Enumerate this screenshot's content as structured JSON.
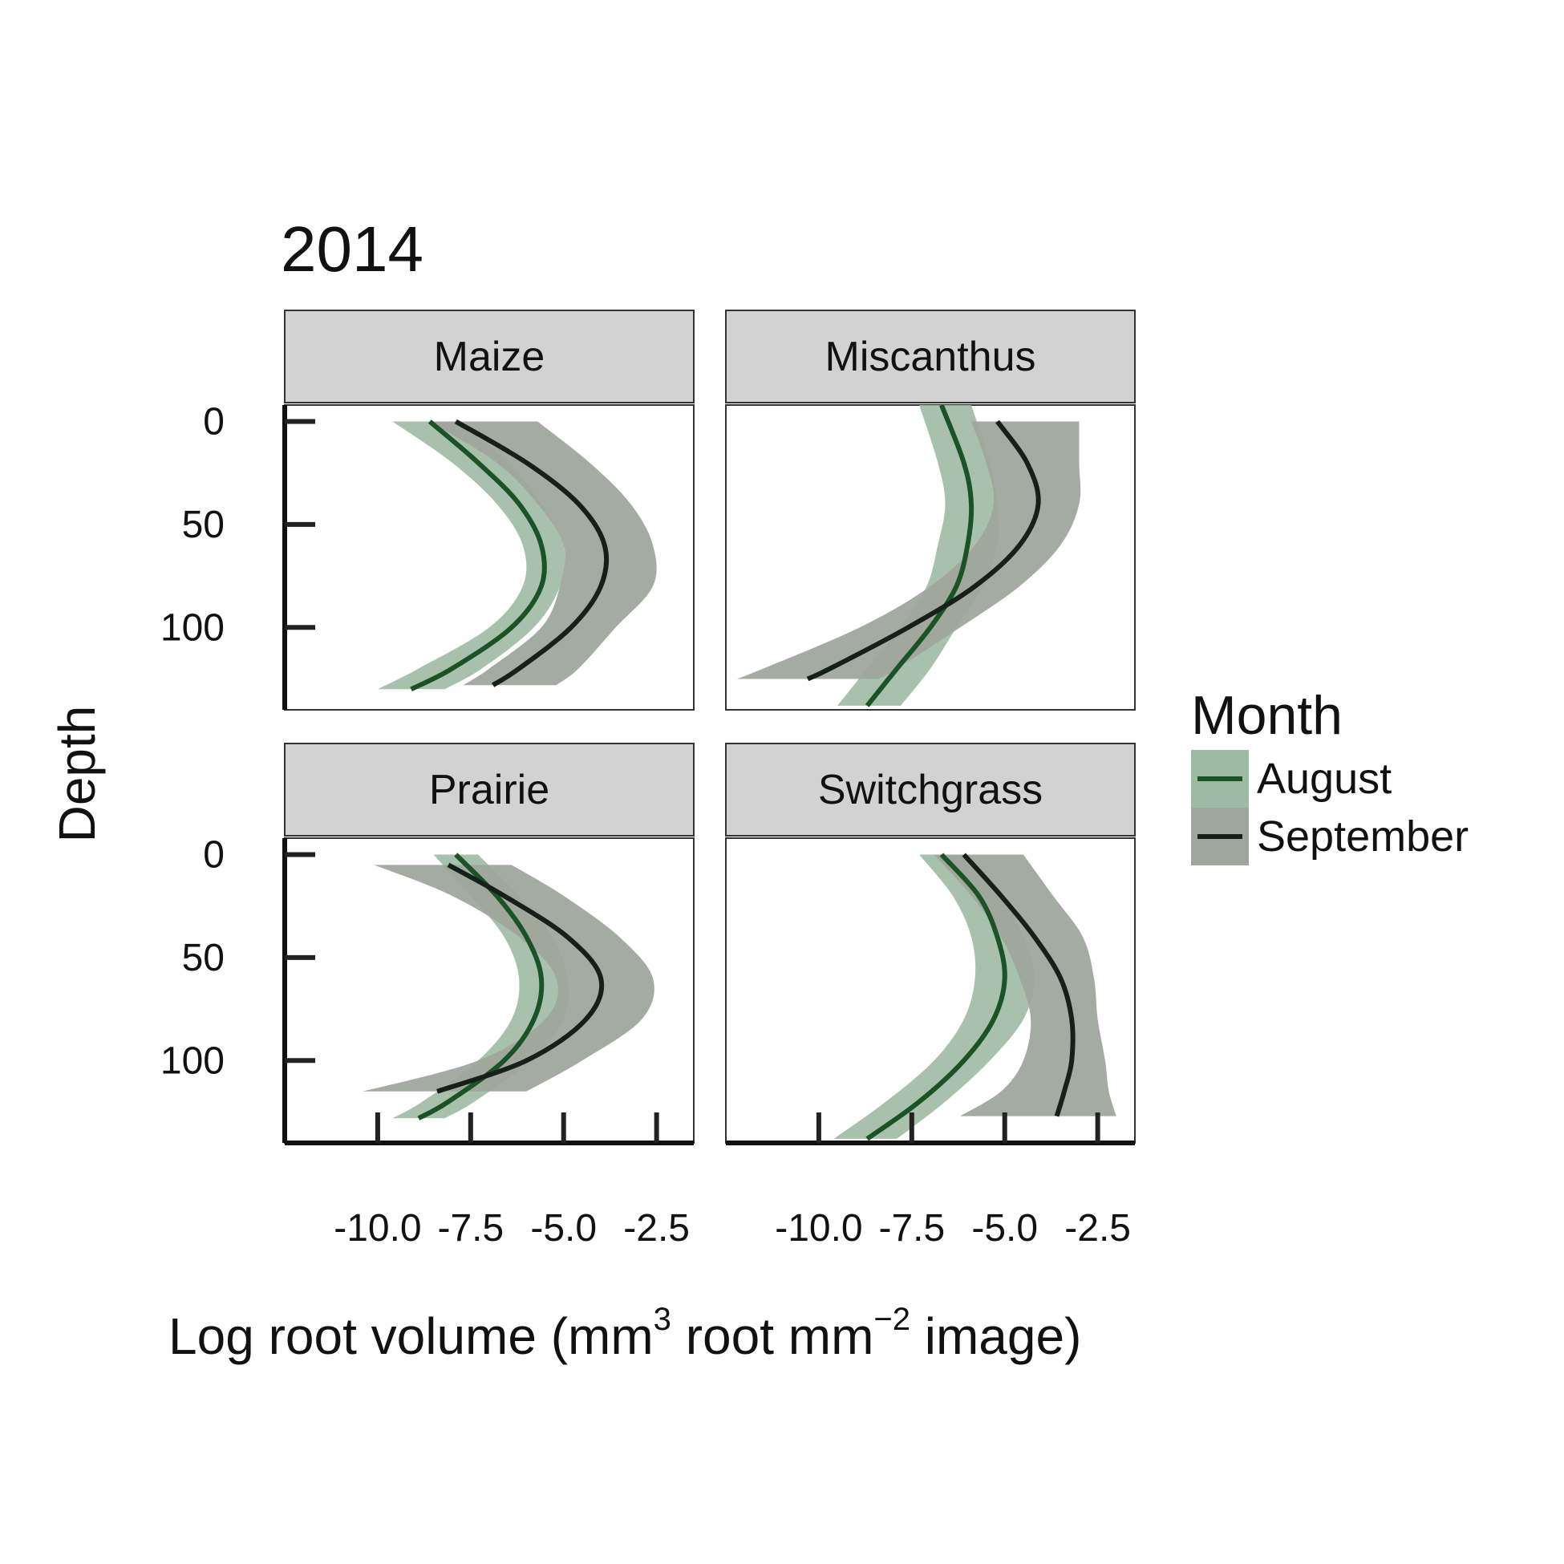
{
  "chart_data": {
    "type": "line",
    "title": "2014",
    "xlabel": "Log root volume (mm",
    "xlabel_parts": {
      "a": "Log root volume (mm",
      "sup1": "3",
      "b": " root mm",
      "sup2": "−2",
      "c": " image)"
    },
    "ylabel": "Depth",
    "xlim": [
      -12.5,
      -1.5
    ],
    "ylim": [
      140,
      -8
    ],
    "x_ticks": [
      -10.0,
      -7.5,
      -5.0,
      -2.5
    ],
    "x_tick_labels": [
      "-10.0",
      "-7.5",
      "-5.0",
      "-2.5"
    ],
    "y_ticks": [
      0,
      50,
      100
    ],
    "y_tick_labels": [
      "0",
      "50",
      "100"
    ],
    "legend": {
      "title": "Month",
      "placement": "right",
      "entries": [
        {
          "label": "August",
          "line_color": "#1b5226",
          "fill_color": "#9dbaa3"
        },
        {
          "label": "September",
          "line_color": "#16201a",
          "fill_color": "#9fa69d"
        }
      ]
    },
    "panels": [
      {
        "name": "Maize",
        "series": [
          {
            "name": "August",
            "depth": [
              0,
              20,
              40,
              60,
              80,
              100,
              120,
              130
            ],
            "mean": [
              -8.6,
              -7.3,
              -6.2,
              -5.6,
              -5.6,
              -6.4,
              -8.0,
              -9.1
            ],
            "lower": [
              -9.6,
              -8.0,
              -6.8,
              -6.1,
              -6.1,
              -7.0,
              -8.9,
              -10.0
            ],
            "upper": [
              -7.8,
              -6.5,
              -5.6,
              -5.0,
              -5.1,
              -5.8,
              -7.2,
              -8.2
            ]
          },
          {
            "name": "September",
            "depth": [
              0,
              20,
              40,
              60,
              80,
              100,
              120,
              128
            ],
            "mean": [
              -7.9,
              -6.0,
              -4.6,
              -3.9,
              -4.0,
              -4.8,
              -6.2,
              -6.9
            ],
            "lower": [
              -8.6,
              -6.8,
              -5.7,
              -5.0,
              -5.1,
              -5.6,
              -7.0,
              -7.7
            ],
            "upper": [
              -5.7,
              -4.3,
              -3.2,
              -2.6,
              -2.6,
              -3.6,
              -4.6,
              -5.2
            ]
          }
        ]
      },
      {
        "name": "Miscanthus",
        "series": [
          {
            "name": "August",
            "depth": [
              -8,
              20,
              40,
              60,
              80,
              100,
              120,
              138
            ],
            "mean": [
              -6.7,
              -6.1,
              -5.9,
              -6.0,
              -6.3,
              -7.0,
              -7.9,
              -8.7
            ],
            "lower": [
              -7.3,
              -6.8,
              -6.6,
              -6.8,
              -7.1,
              -7.8,
              -8.7,
              -9.5
            ],
            "upper": [
              -5.9,
              -5.4,
              -5.2,
              -5.2,
              -5.6,
              -6.3,
              -7.0,
              -7.8
            ]
          },
          {
            "name": "September",
            "depth": [
              0,
              20,
              40,
              60,
              80,
              100,
              120,
              125
            ],
            "mean": [
              -5.2,
              -4.4,
              -4.1,
              -4.6,
              -5.8,
              -7.6,
              -9.7,
              -10.3
            ],
            "lower": [
              -5.9,
              -5.5,
              -5.3,
              -5.8,
              -7.0,
              -8.9,
              -11.5,
              -12.2
            ],
            "upper": [
              -3.0,
              -3.0,
              -3.0,
              -3.5,
              -4.6,
              -6.2,
              -7.9,
              -8.4
            ]
          }
        ]
      },
      {
        "name": "Prairie",
        "series": [
          {
            "name": "August",
            "depth": [
              0,
              20,
              40,
              60,
              80,
              100,
              120,
              128
            ],
            "mean": [
              -7.9,
              -6.8,
              -6.0,
              -5.6,
              -5.8,
              -6.6,
              -8.1,
              -8.9
            ],
            "lower": [
              -8.5,
              -7.5,
              -6.6,
              -6.2,
              -6.4,
              -7.3,
              -8.8,
              -9.6
            ],
            "upper": [
              -7.3,
              -6.2,
              -5.3,
              -4.9,
              -5.0,
              -5.9,
              -7.4,
              -8.2
            ]
          },
          {
            "name": "September",
            "depth": [
              5,
              20,
              40,
              60,
              80,
              100,
              115
            ],
            "mean": [
              -8.1,
              -6.6,
              -4.9,
              -4.0,
              -4.4,
              -6.0,
              -8.4
            ],
            "lower": [
              -10.1,
              -8.0,
              -6.2,
              -5.2,
              -5.5,
              -7.3,
              -10.4
            ],
            "upper": [
              -6.4,
              -5.0,
              -3.5,
              -2.6,
              -2.9,
              -4.5,
              -6.0
            ]
          }
        ]
      },
      {
        "name": "Switchgrass",
        "series": [
          {
            "name": "August",
            "depth": [
              0,
              20,
              40,
              60,
              80,
              100,
              120,
              138
            ],
            "mean": [
              -6.7,
              -5.7,
              -5.2,
              -5.0,
              -5.3,
              -6.1,
              -7.3,
              -8.7
            ],
            "lower": [
              -7.3,
              -6.4,
              -5.9,
              -5.8,
              -6.1,
              -6.9,
              -8.2,
              -9.6
            ],
            "upper": [
              -6.1,
              -5.1,
              -4.5,
              -4.2,
              -4.5,
              -5.4,
              -6.6,
              -7.9
            ]
          },
          {
            "name": "September",
            "depth": [
              0,
              20,
              40,
              60,
              80,
              100,
              115,
              127
            ],
            "mean": [
              -6.1,
              -5.1,
              -4.2,
              -3.5,
              -3.2,
              -3.2,
              -3.4,
              -3.6
            ],
            "lower": [
              -6.9,
              -5.9,
              -5.1,
              -4.6,
              -4.3,
              -4.5,
              -5.1,
              -6.2
            ],
            "upper": [
              -4.5,
              -3.7,
              -2.9,
              -2.6,
              -2.5,
              -2.3,
              -2.2,
              -2.0
            ]
          }
        ]
      }
    ]
  }
}
